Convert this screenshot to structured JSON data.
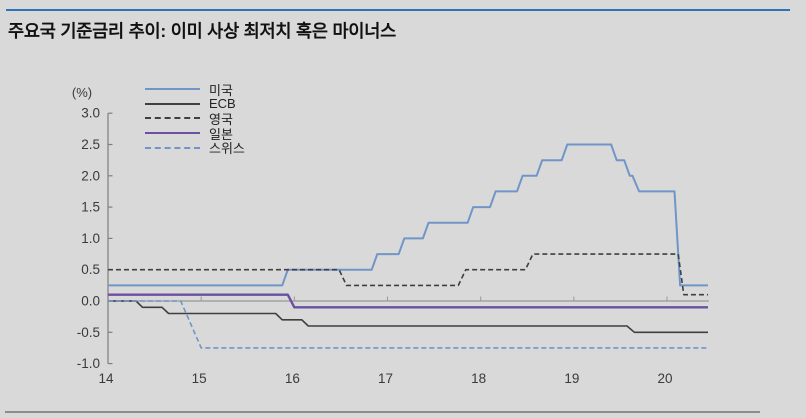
{
  "page": {
    "title": "주요국 기준금리 추이: 이미 사상 최저치 혹은 마이너스",
    "accent_color": "#2e74b5",
    "background_color": "#d9d9d9"
  },
  "chart_data": {
    "type": "line",
    "title": "주요국 기준금리 추이: 이미 사상 최저치 혹은 마이너스",
    "unit_label": "(%)",
    "xlabel": "",
    "ylabel": "(%)",
    "grid": false,
    "legend_position": "top-left-inside",
    "x_axis": {
      "ticks": [
        14,
        15,
        16,
        17,
        18,
        19,
        20
      ],
      "tick_labels": [
        "14",
        "15",
        "16",
        "17",
        "18",
        "19",
        "20"
      ],
      "range": [
        14,
        20.45
      ]
    },
    "y_axis": {
      "ticks": [
        3.0,
        2.5,
        2.0,
        1.5,
        1.0,
        0.5,
        0.0,
        -0.5,
        -1.0
      ],
      "labels": [
        "3.0",
        "2.5",
        "2.0",
        "1.5",
        "1.0",
        "0.5",
        "0.0",
        "-0.5",
        "-1.0"
      ],
      "range": [
        -1.0,
        3.0
      ]
    },
    "series": [
      {
        "id": "us",
        "name": "미국",
        "color": "#7095c8",
        "dash": "solid",
        "width": 2,
        "points": [
          [
            14,
            0.25
          ],
          [
            15.87,
            0.25
          ],
          [
            15.93,
            0.5
          ],
          [
            16.83,
            0.5
          ],
          [
            16.89,
            0.75
          ],
          [
            17.12,
            0.75
          ],
          [
            17.18,
            1.0
          ],
          [
            17.38,
            1.0
          ],
          [
            17.44,
            1.25
          ],
          [
            17.86,
            1.25
          ],
          [
            17.92,
            1.5
          ],
          [
            18.1,
            1.5
          ],
          [
            18.16,
            1.75
          ],
          [
            18.39,
            1.75
          ],
          [
            18.45,
            2.0
          ],
          [
            18.6,
            2.0
          ],
          [
            18.66,
            2.25
          ],
          [
            18.87,
            2.25
          ],
          [
            18.93,
            2.5
          ],
          [
            19.4,
            2.5
          ],
          [
            19.46,
            2.25
          ],
          [
            19.54,
            2.25
          ],
          [
            19.6,
            2.0
          ],
          [
            19.63,
            2.0
          ],
          [
            19.7,
            1.75
          ],
          [
            20.08,
            1.75
          ],
          [
            20.14,
            0.25
          ],
          [
            20.44,
            0.25
          ]
        ]
      },
      {
        "id": "ecb",
        "name": "ECB",
        "color": "#3f3f3f",
        "dash": "solid",
        "width": 1.6,
        "points": [
          [
            14,
            0.0
          ],
          [
            14.3,
            0.0
          ],
          [
            14.37,
            -0.1
          ],
          [
            14.58,
            -0.1
          ],
          [
            14.65,
            -0.2
          ],
          [
            15.8,
            -0.2
          ],
          [
            15.87,
            -0.3
          ],
          [
            16.08,
            -0.3
          ],
          [
            16.15,
            -0.4
          ],
          [
            19.57,
            -0.4
          ],
          [
            19.65,
            -0.5
          ],
          [
            20.44,
            -0.5
          ]
        ]
      },
      {
        "id": "uk",
        "name": "영국",
        "color": "#3f3f3f",
        "dash": "dashed",
        "width": 1.6,
        "points": [
          [
            14,
            0.5
          ],
          [
            16.48,
            0.5
          ],
          [
            16.56,
            0.25
          ],
          [
            17.76,
            0.25
          ],
          [
            17.84,
            0.5
          ],
          [
            18.48,
            0.5
          ],
          [
            18.56,
            0.75
          ],
          [
            20.12,
            0.75
          ],
          [
            20.18,
            0.1
          ],
          [
            20.44,
            0.1
          ]
        ]
      },
      {
        "id": "japan",
        "name": "일본",
        "color": "#6b4fa0",
        "dash": "solid",
        "width": 2.4,
        "points": [
          [
            14,
            0.1
          ],
          [
            15.93,
            0.1
          ],
          [
            16.0,
            -0.1
          ],
          [
            20.44,
            -0.1
          ]
        ]
      },
      {
        "id": "swiss",
        "name": "스위스",
        "color": "#7095c8",
        "dash": "dashed",
        "width": 1.6,
        "points": [
          [
            14,
            0.0
          ],
          [
            14.78,
            0.0
          ],
          [
            15.0,
            -0.75
          ],
          [
            20.44,
            -0.75
          ]
        ]
      }
    ]
  }
}
